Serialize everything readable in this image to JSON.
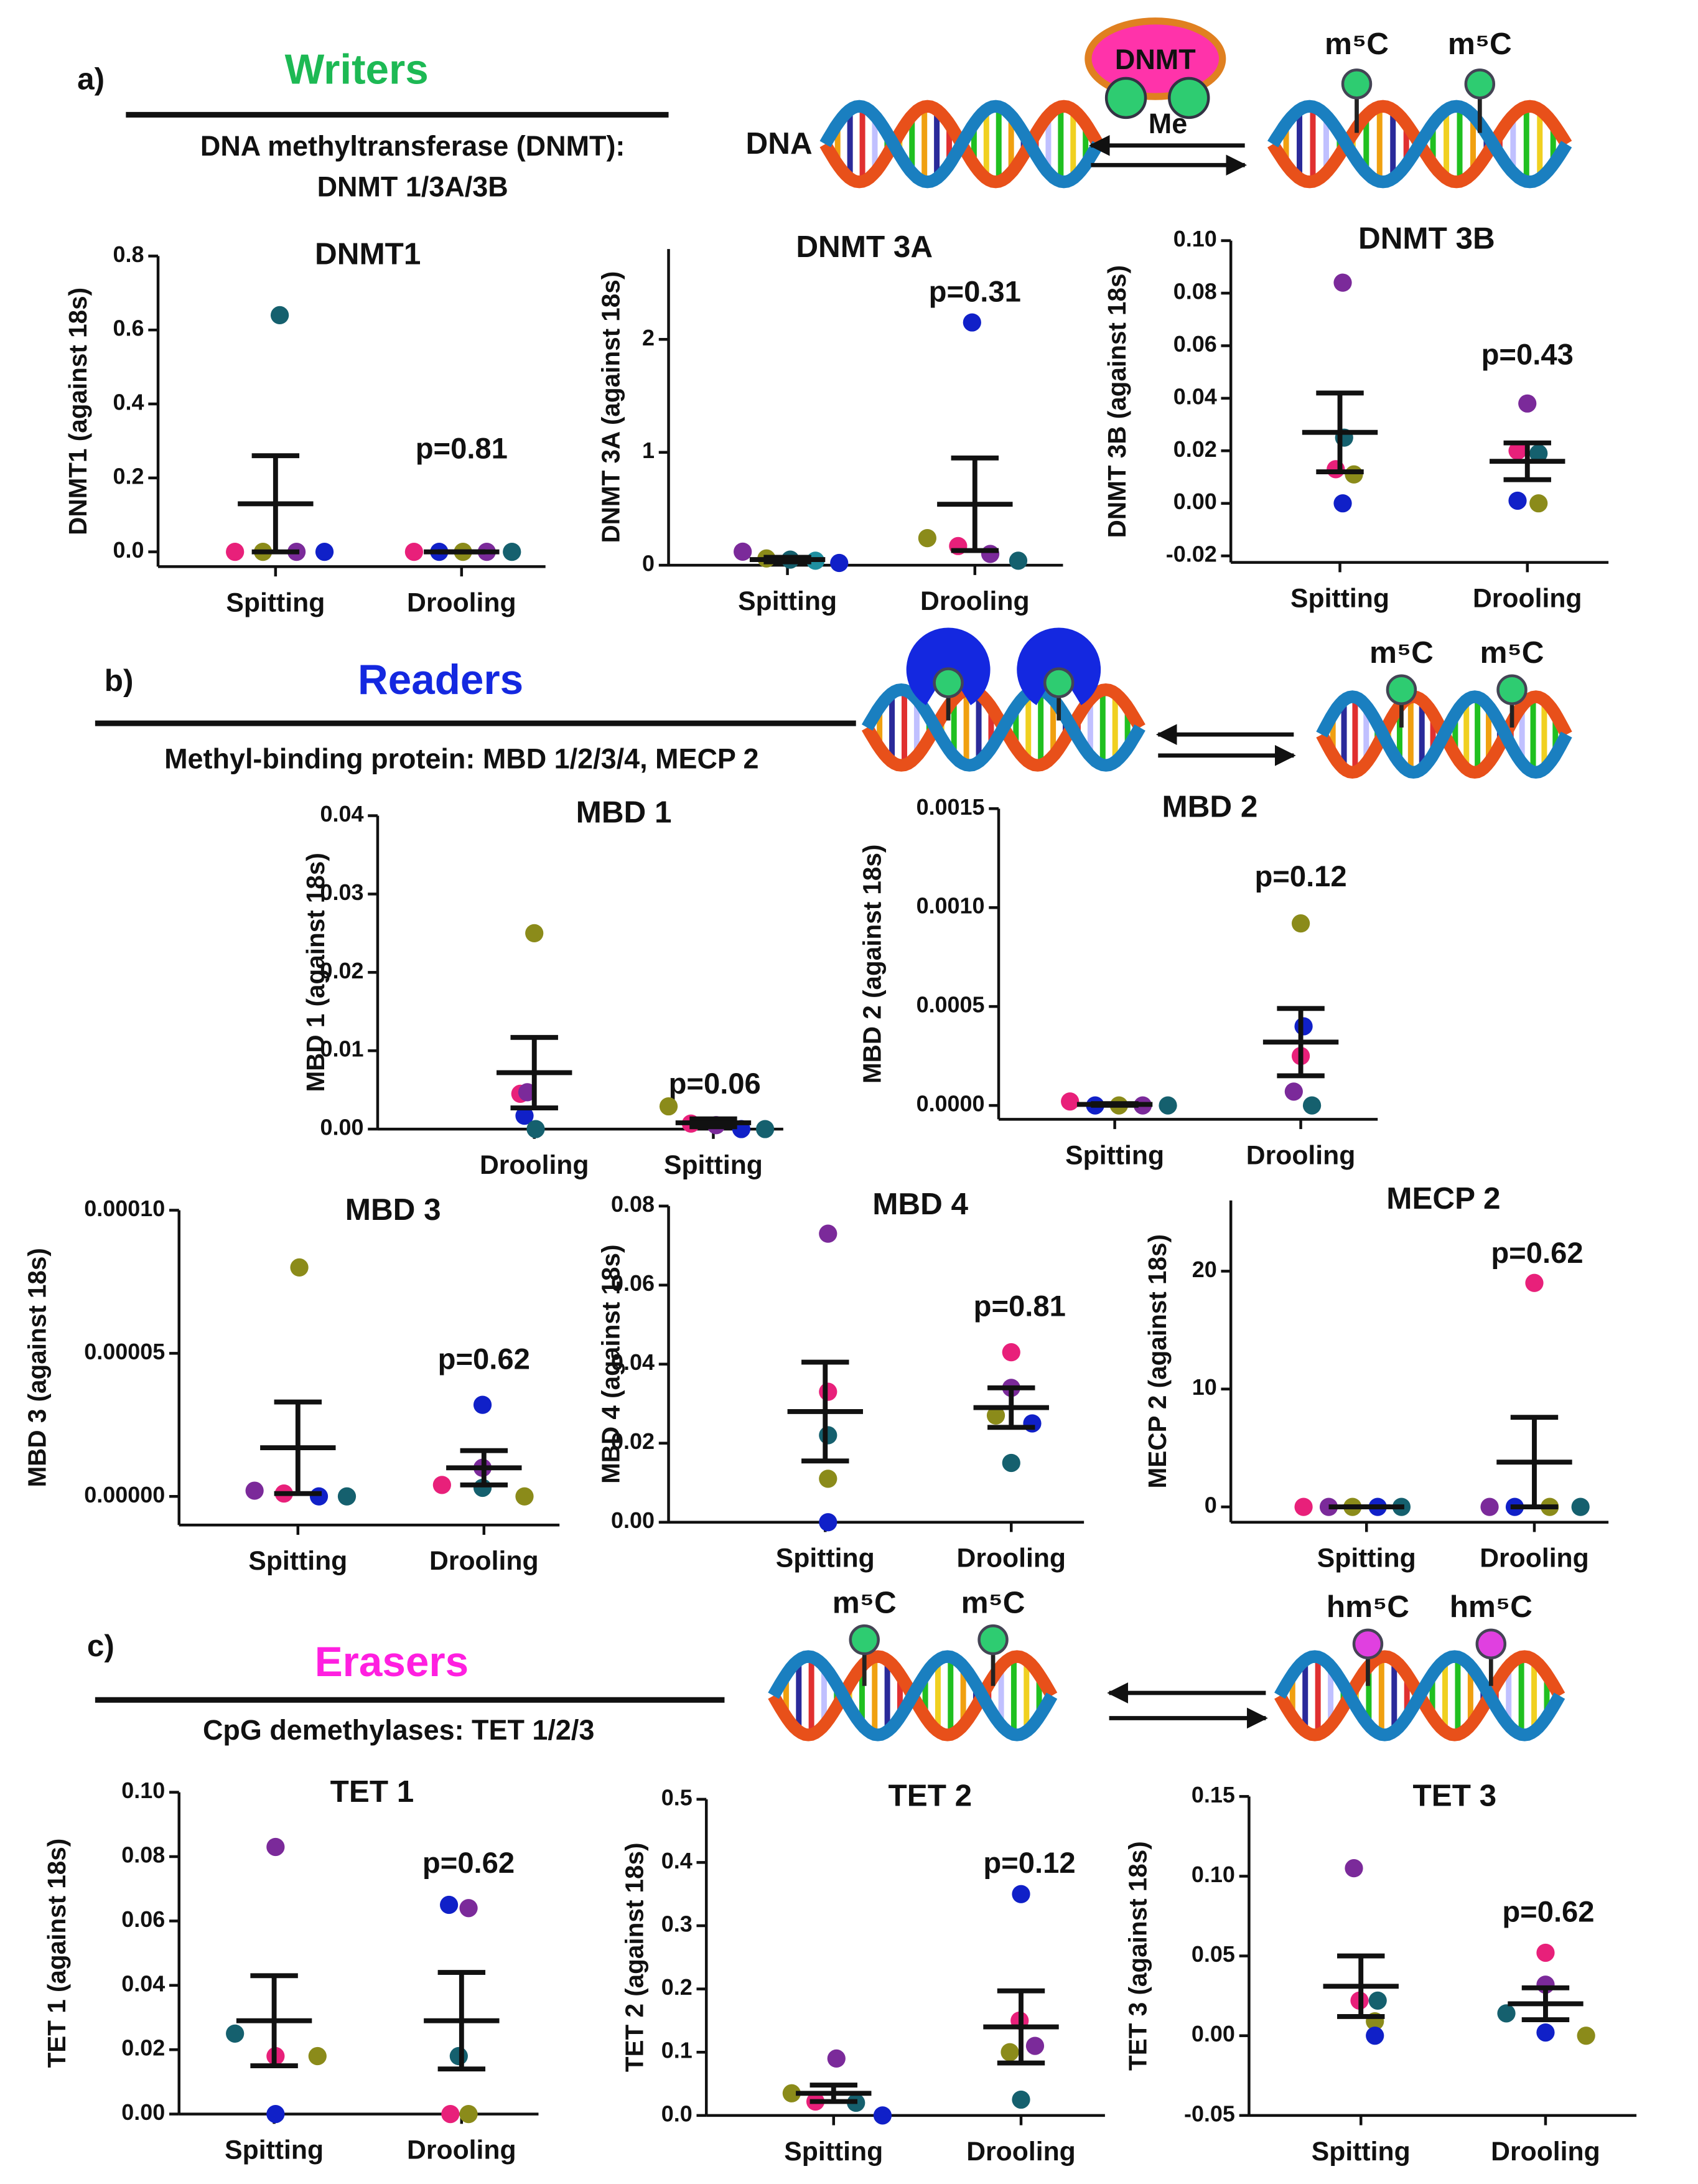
{
  "sections": [
    {
      "label": "a)",
      "title": "Writers",
      "color": "#1db954",
      "lines": [
        "DNA  methyltransferase (DNMT):",
        "DNMT 1/3A/3B"
      ],
      "diagram_labels": [
        "DNA",
        "DNMT",
        "Me",
        "m⁵C",
        "m⁵C"
      ]
    },
    {
      "label": "b)",
      "title": "Readers",
      "color": "#1428e0",
      "lines": [
        "Methyl-binding protein:  MBD 1/2/3/4, MECP 2"
      ],
      "diagram_labels": [
        "m⁵C",
        "m⁵C"
      ]
    },
    {
      "label": "c)",
      "title": "Erasers",
      "color": "#ff1fe0",
      "lines": [
        "CpG demethylases:  TET 1/2/3"
      ],
      "diagram_labels": [
        "m⁵C",
        "m⁵C",
        "hm⁵C",
        "hm⁵C"
      ]
    }
  ],
  "chart_data": [
    {
      "type": "scatter",
      "title": "DNMT1",
      "ylabel": "DNMT1 (against 18s)",
      "categories": [
        "Spitting",
        "Drooling"
      ],
      "annotation": "p=0.81",
      "ylim": [
        -0.04,
        0.8
      ],
      "yticks": [
        {
          "value": 0,
          "label": "0.0"
        },
        0.2,
        0.4,
        0.6,
        0.8
      ],
      "groups": [
        {
          "values": [
            0,
            0,
            0.64,
            0,
            0
          ],
          "colors": [
            "#e8207a",
            "#8b8b1a",
            "#15606e",
            "#7b2a9a",
            "#1020c8"
          ],
          "mean": 0.13,
          "sem": 0.13
        },
        {
          "values": [
            0,
            0,
            0,
            0,
            0
          ],
          "colors": [
            "#e8207a",
            "#1020c8",
            "#8b8b1a",
            "#7b2a9a",
            "#15606e"
          ],
          "mean": 0,
          "sem": 0
        }
      ]
    },
    {
      "type": "scatter",
      "title": "DNMT 3A",
      "ylabel": "DNMT 3A (against 18s)",
      "categories": [
        "Spitting",
        "Drooling"
      ],
      "annotation": "p=0.31",
      "ylim": [
        0,
        2.8
      ],
      "yticks": [
        0,
        1,
        2
      ],
      "groups": [
        {
          "values": [
            0.12,
            0.06,
            0.05,
            0.04,
            0.02
          ],
          "colors": [
            "#7b2a9a",
            "#8b8b1a",
            "#15606e",
            "#1f8fa0",
            "#1020c8"
          ],
          "mean": 0.05,
          "sem": 0.02
        },
        {
          "values": [
            0.24,
            0.17,
            2.15,
            0.1,
            0.04
          ],
          "colors": [
            "#8b8b1a",
            "#e8207a",
            "#1020c8",
            "#7b2a9a",
            "#15606e"
          ],
          "mean": 0.54,
          "sem": 0.41
        }
      ]
    },
    {
      "type": "scatter",
      "title": "DNMT 3B",
      "ylabel": "DNMT 3B (against 18s)",
      "categories": [
        "Spitting",
        "Drooling"
      ],
      "annotation": "p=0.43",
      "ylim": [
        -0.0225,
        0.1
      ],
      "yticks": [
        -0.02,
        {
          "value": 0,
          "label": "0.00"
        },
        0.02,
        0.04,
        0.06,
        0.08,
        {
          "value": 0.1,
          "label": "0.10"
        }
      ],
      "groups": [
        {
          "values": [
            0.084,
            0.025,
            0.013,
            0.011,
            0
          ],
          "colors": [
            "#7b2a9a",
            "#15606e",
            "#e8207a",
            "#8b8b1a",
            "#1020c8"
          ],
          "mean": 0.027,
          "sem": 0.015
        },
        {
          "values": [
            0.038,
            0.02,
            0.019,
            0.001,
            0
          ],
          "colors": [
            "#7b2a9a",
            "#e8207a",
            "#15606e",
            "#1020c8",
            "#8b8b1a"
          ],
          "mean": 0.016,
          "sem": 0.007
        }
      ]
    },
    {
      "type": "scatter",
      "title": "MBD 1",
      "ylabel": "MBD 1 (against 18s)",
      "categories": [
        "Drooling",
        "Spitting"
      ],
      "annotation": "p=0.06",
      "ylim": [
        0,
        0.04
      ],
      "yticks": [
        {
          "value": 0,
          "label": "0.00"
        },
        0.01,
        0.02,
        0.03,
        0.04
      ],
      "groups": [
        {
          "values": [
            0.025,
            0.0045,
            0.0047,
            0.0017,
            0
          ],
          "colors": [
            "#8b8b1a",
            "#e8207a",
            "#7b2a9a",
            "#1020c8",
            "#15606e"
          ],
          "mean": 0.0072,
          "sem": 0.0045
        },
        {
          "values": [
            0.0029,
            0.0007,
            0.0005,
            0,
            0
          ],
          "colors": [
            "#8b8b1a",
            "#e8207a",
            "#7b2a9a",
            "#1020c8",
            "#15606e"
          ],
          "mean": 0.0008,
          "sem": 0.0005
        }
      ]
    },
    {
      "type": "scatter",
      "title": "MBD 2",
      "ylabel": "MBD 2 (against 18s)",
      "categories": [
        "Spitting",
        "Drooling"
      ],
      "annotation": "p=0.12",
      "ylim": [
        -7e-05,
        0.0015
      ],
      "yticks": [
        {
          "value": 0,
          "label": "0.0000"
        },
        0.0005,
        {
          "value": 0.001,
          "label": "0.0010"
        },
        0.0015
      ],
      "groups": [
        {
          "values": [
            2e-05,
            0,
            0,
            0,
            0
          ],
          "colors": [
            "#e8207a",
            "#1020c8",
            "#8b8b1a",
            "#7b2a9a",
            "#15606e"
          ],
          "mean": 5e-06,
          "sem": 4e-06
        },
        {
          "values": [
            0.00092,
            0.0004,
            0.00025,
            7e-05,
            0
          ],
          "colors": [
            "#8b8b1a",
            "#1020c8",
            "#e8207a",
            "#7b2a9a",
            "#15606e"
          ],
          "mean": 0.00032,
          "sem": 0.00017
        }
      ]
    },
    {
      "type": "scatter",
      "title": "MBD 3",
      "ylabel": "MBD 3 (against 18s)",
      "categories": [
        "Spitting",
        "Drooling"
      ],
      "annotation": "p=0.62",
      "ylim": [
        -1e-05,
        0.0001
      ],
      "yticks": [
        {
          "value": 0,
          "label": "0.00000"
        },
        5e-05,
        {
          "value": 0.0001,
          "label": "0.00010"
        }
      ],
      "groups": [
        {
          "values": [
            8e-05,
            2e-06,
            1e-06,
            0,
            0
          ],
          "colors": [
            "#8b8b1a",
            "#7b2a9a",
            "#e8207a",
            "#1020c8",
            "#15606e"
          ],
          "mean": 1.7e-05,
          "sem": 1.6e-05
        },
        {
          "values": [
            3.2e-05,
            1e-05,
            4e-06,
            3e-06,
            0
          ],
          "colors": [
            "#1020c8",
            "#7b2a9a",
            "#e8207a",
            "#15606e",
            "#8b8b1a"
          ],
          "mean": 1e-05,
          "sem": 6e-06
        }
      ]
    },
    {
      "type": "scatter",
      "title": "MBD 4",
      "ylabel": "MBD 4 (against 18s)",
      "categories": [
        "Spitting",
        "Drooling"
      ],
      "annotation": "p=0.81",
      "ylim": [
        0,
        0.08
      ],
      "yticks": [
        {
          "value": 0,
          "label": "0.00"
        },
        0.02,
        0.04,
        0.06,
        0.08
      ],
      "groups": [
        {
          "values": [
            0.073,
            0.033,
            0.022,
            0.011,
            0
          ],
          "colors": [
            "#7b2a9a",
            "#e8207a",
            "#15606e",
            "#8b8b1a",
            "#1020c8"
          ],
          "mean": 0.028,
          "sem": 0.0125
        },
        {
          "values": [
            0.043,
            0.034,
            0.027,
            0.025,
            0.015
          ],
          "colors": [
            "#e8207a",
            "#7b2a9a",
            "#8b8b1a",
            "#1020c8",
            "#15606e"
          ],
          "mean": 0.029,
          "sem": 0.005
        }
      ]
    },
    {
      "type": "scatter",
      "title": "MECP 2",
      "ylabel": "MECP 2 (against 18s)",
      "categories": [
        "Spitting",
        "Drooling"
      ],
      "annotation": "p=0.62",
      "ylim": [
        -1.3,
        26
      ],
      "yticks": [
        0,
        10,
        20
      ],
      "groups": [
        {
          "values": [
            0,
            0,
            0,
            0,
            0
          ],
          "colors": [
            "#e8207a",
            "#7b2a9a",
            "#8b8b1a",
            "#1020c8",
            "#15606e"
          ],
          "mean": 0,
          "sem": 0
        },
        {
          "values": [
            19,
            0,
            0,
            0,
            0
          ],
          "colors": [
            "#e8207a",
            "#7b2a9a",
            "#1020c8",
            "#8b8b1a",
            "#15606e"
          ],
          "mean": 3.8,
          "sem": 3.8
        }
      ]
    },
    {
      "type": "scatter",
      "title": "TET 1",
      "ylabel": "TET 1 (against 18s)",
      "categories": [
        "Spitting",
        "Drooling"
      ],
      "annotation": "p=0.62",
      "ylim": [
        0,
        0.1
      ],
      "yticks": [
        {
          "value": 0,
          "label": "0.00"
        },
        0.02,
        0.04,
        0.06,
        0.08,
        {
          "value": 0.1,
          "label": "0.10"
        }
      ],
      "groups": [
        {
          "values": [
            0.083,
            0.025,
            0.018,
            0.018,
            0
          ],
          "colors": [
            "#7b2a9a",
            "#15606e",
            "#e8207a",
            "#8b8b1a",
            "#1020c8"
          ],
          "mean": 0.029,
          "sem": 0.014
        },
        {
          "values": [
            0.065,
            0.064,
            0.018,
            0,
            0
          ],
          "colors": [
            "#1020c8",
            "#7b2a9a",
            "#15606e",
            "#e8207a",
            "#8b8b1a"
          ],
          "mean": 0.029,
          "sem": 0.015
        }
      ]
    },
    {
      "type": "scatter",
      "title": "TET 2",
      "ylabel": "TET 2 (against 18s)",
      "categories": [
        "Spitting",
        "Drooling"
      ],
      "annotation": "p=0.12",
      "ylim": [
        0,
        0.5
      ],
      "yticks": [
        {
          "value": 0,
          "label": "0.0"
        },
        0.1,
        0.2,
        0.3,
        0.4,
        0.5
      ],
      "groups": [
        {
          "values": [
            0.035,
            0.022,
            0.09,
            0.02,
            0
          ],
          "colors": [
            "#8b8b1a",
            "#e8207a",
            "#7b2a9a",
            "#15606e",
            "#1020c8"
          ],
          "mean": 0.035,
          "sem": 0.013
        },
        {
          "values": [
            0.35,
            0.15,
            0.11,
            0.1,
            0.025
          ],
          "colors": [
            "#1020c8",
            "#e8207a",
            "#7b2a9a",
            "#8b8b1a",
            "#15606e"
          ],
          "mean": 0.14,
          "sem": 0.057
        }
      ]
    },
    {
      "type": "scatter",
      "title": "TET 3",
      "ylabel": "TET 3 (against 18s)",
      "categories": [
        "Spitting",
        "Drooling"
      ],
      "annotation": "p=0.62",
      "ylim": [
        -0.05,
        0.15
      ],
      "yticks": [
        -0.05,
        {
          "value": 0,
          "label": "0.00"
        },
        0.05,
        {
          "value": 0.1,
          "label": "0.10"
        },
        0.15
      ],
      "groups": [
        {
          "values": [
            0.105,
            0.022,
            0.022,
            0.009,
            0
          ],
          "colors": [
            "#7b2a9a",
            "#e8207a",
            "#15606e",
            "#8b8b1a",
            "#1020c8"
          ],
          "mean": 0.031,
          "sem": 0.019
        },
        {
          "values": [
            0.052,
            0.032,
            0.014,
            0.002,
            0
          ],
          "colors": [
            "#e8207a",
            "#7b2a9a",
            "#15606e",
            "#1020c8",
            "#8b8b1a"
          ],
          "mean": 0.02,
          "sem": 0.01
        }
      ]
    }
  ]
}
